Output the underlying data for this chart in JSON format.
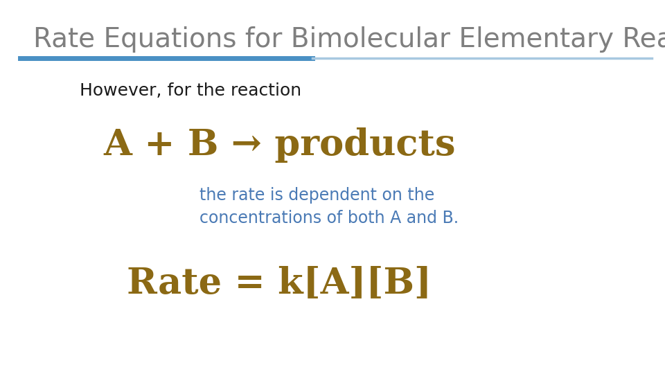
{
  "title": "Rate Equations for Bimolecular Elementary Reactions",
  "title_color": "#7f7f7f",
  "title_fontsize": 28,
  "line_color_thick": "#4a90c4",
  "line_color_thin": "#a8c8e0",
  "however_text": "However, for the reaction",
  "however_color": "#1a1a1a",
  "however_fontsize": 18,
  "reaction_text": "A + B → products",
  "reaction_color": "#8B6914",
  "reaction_fontsize": 38,
  "desc_line1": "the rate is dependent on the",
  "desc_line2": "concentrations of both A and B.",
  "desc_color": "#4a7ab5",
  "desc_fontsize": 17,
  "rate_text": "Rate = k[A][B]",
  "rate_color": "#8B6914",
  "rate_fontsize": 38,
  "bg_color": "#ffffff"
}
